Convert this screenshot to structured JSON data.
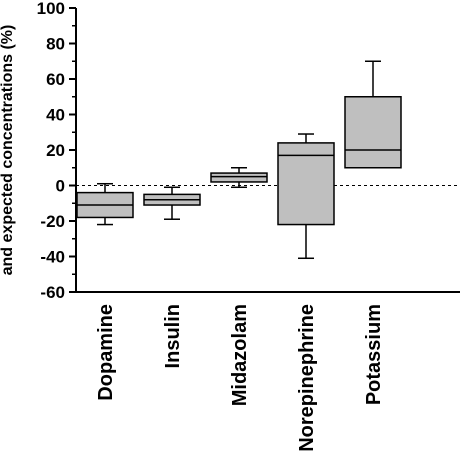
{
  "chart_data": {
    "type": "box",
    "ylabel": "and expected concentrations (%)",
    "ylim": [
      -60,
      100
    ],
    "yticks_major": [
      -60,
      -40,
      -20,
      0,
      20,
      40,
      60,
      80,
      100
    ],
    "yticks_major_labels": [
      "-60",
      "-40",
      "-20",
      "0",
      "20",
      "40",
      "60",
      "80",
      "100"
    ],
    "yticks_minor": [
      -50,
      -30,
      -10,
      10,
      30,
      50,
      70,
      90
    ],
    "reference_line": 0,
    "box_color": "#bfbfbf",
    "categories": [
      "Dopamine",
      "Insulin",
      "Midazolam",
      "Norepinephrine",
      "Potassium"
    ],
    "boxes": [
      {
        "name": "Dopamine",
        "min": -22,
        "q1": -18,
        "median": -11,
        "q3": -4,
        "max": 1
      },
      {
        "name": "Insulin",
        "min": -19,
        "q1": -11,
        "median": -8,
        "q3": -5,
        "max": -1
      },
      {
        "name": "Midazolam",
        "min": -1,
        "q1": 2,
        "median": 5,
        "q3": 7,
        "max": 10
      },
      {
        "name": "Norepinephrine",
        "min": -41,
        "q1": -22,
        "median": 17,
        "q3": 24,
        "max": 29
      },
      {
        "name": "Potassium",
        "min": 10,
        "q1": 10,
        "median": 20,
        "q3": 50,
        "max": 70
      }
    ]
  }
}
